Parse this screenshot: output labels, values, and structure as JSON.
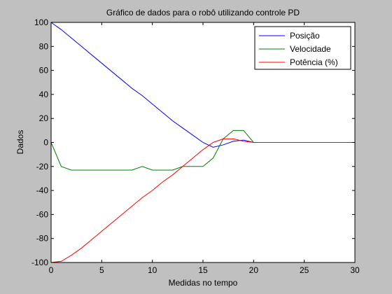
{
  "chart_data": {
    "type": "line",
    "title": "Gráfico de dados para o robô utilizando controle PD",
    "xlabel": "Medidas no tempo",
    "ylabel": "Dados",
    "xlim": [
      0,
      30
    ],
    "ylim": [
      -100,
      100
    ],
    "xticks": [
      "0",
      "5",
      "10",
      "15",
      "20",
      "25",
      "30"
    ],
    "yticks": [
      "-100",
      "-80",
      "-60",
      "-40",
      "-20",
      "0",
      "20",
      "40",
      "60",
      "80",
      "100"
    ],
    "grid": false,
    "legend_position": "top-right",
    "series": [
      {
        "name": "Posição",
        "color": "#0000ff",
        "x": [
          0,
          1,
          2,
          3,
          4,
          5,
          6,
          7,
          8,
          9,
          10,
          11,
          12,
          13,
          14,
          15,
          16,
          17,
          18,
          19,
          20,
          21,
          22,
          23,
          24,
          25,
          26,
          27,
          28,
          29,
          30
        ],
        "y": [
          100,
          94,
          87,
          80,
          73,
          66,
          59,
          52,
          45,
          39,
          32,
          25,
          18,
          12,
          6,
          0,
          -4,
          -2,
          1,
          2,
          0,
          0,
          0,
          0,
          0,
          0,
          0,
          0,
          0,
          0,
          0
        ]
      },
      {
        "name": "Velocidade",
        "color": "#008000",
        "x": [
          0,
          1,
          2,
          3,
          4,
          5,
          6,
          7,
          8,
          9,
          10,
          11,
          12,
          13,
          14,
          15,
          16,
          17,
          18,
          19,
          20,
          21,
          22,
          23,
          24,
          25,
          26,
          27,
          28,
          29,
          30
        ],
        "y": [
          0,
          -20,
          -23,
          -23,
          -23,
          -23,
          -23,
          -23,
          -23,
          -20,
          -23,
          -23,
          -23,
          -20,
          -20,
          -20,
          -13,
          3,
          10,
          10,
          0,
          0,
          0,
          0,
          0,
          0,
          0,
          0,
          0,
          0,
          0
        ]
      },
      {
        "name": "Potência (%)",
        "color": "#ff0000",
        "x": [
          0,
          1,
          2,
          3,
          4,
          5,
          6,
          7,
          8,
          9,
          10,
          11,
          12,
          13,
          14,
          15,
          16,
          17,
          18,
          19,
          20,
          21,
          22,
          23,
          24,
          25,
          26,
          27,
          28,
          29,
          30
        ],
        "y": [
          -100,
          -99,
          -94,
          -88,
          -81,
          -74,
          -67,
          -60,
          -53,
          -46,
          -40,
          -33,
          -27,
          -20,
          -13,
          -6,
          0,
          3,
          3,
          1,
          0,
          0,
          0,
          0,
          0,
          0,
          0,
          0,
          0,
          0,
          0
        ]
      }
    ]
  }
}
